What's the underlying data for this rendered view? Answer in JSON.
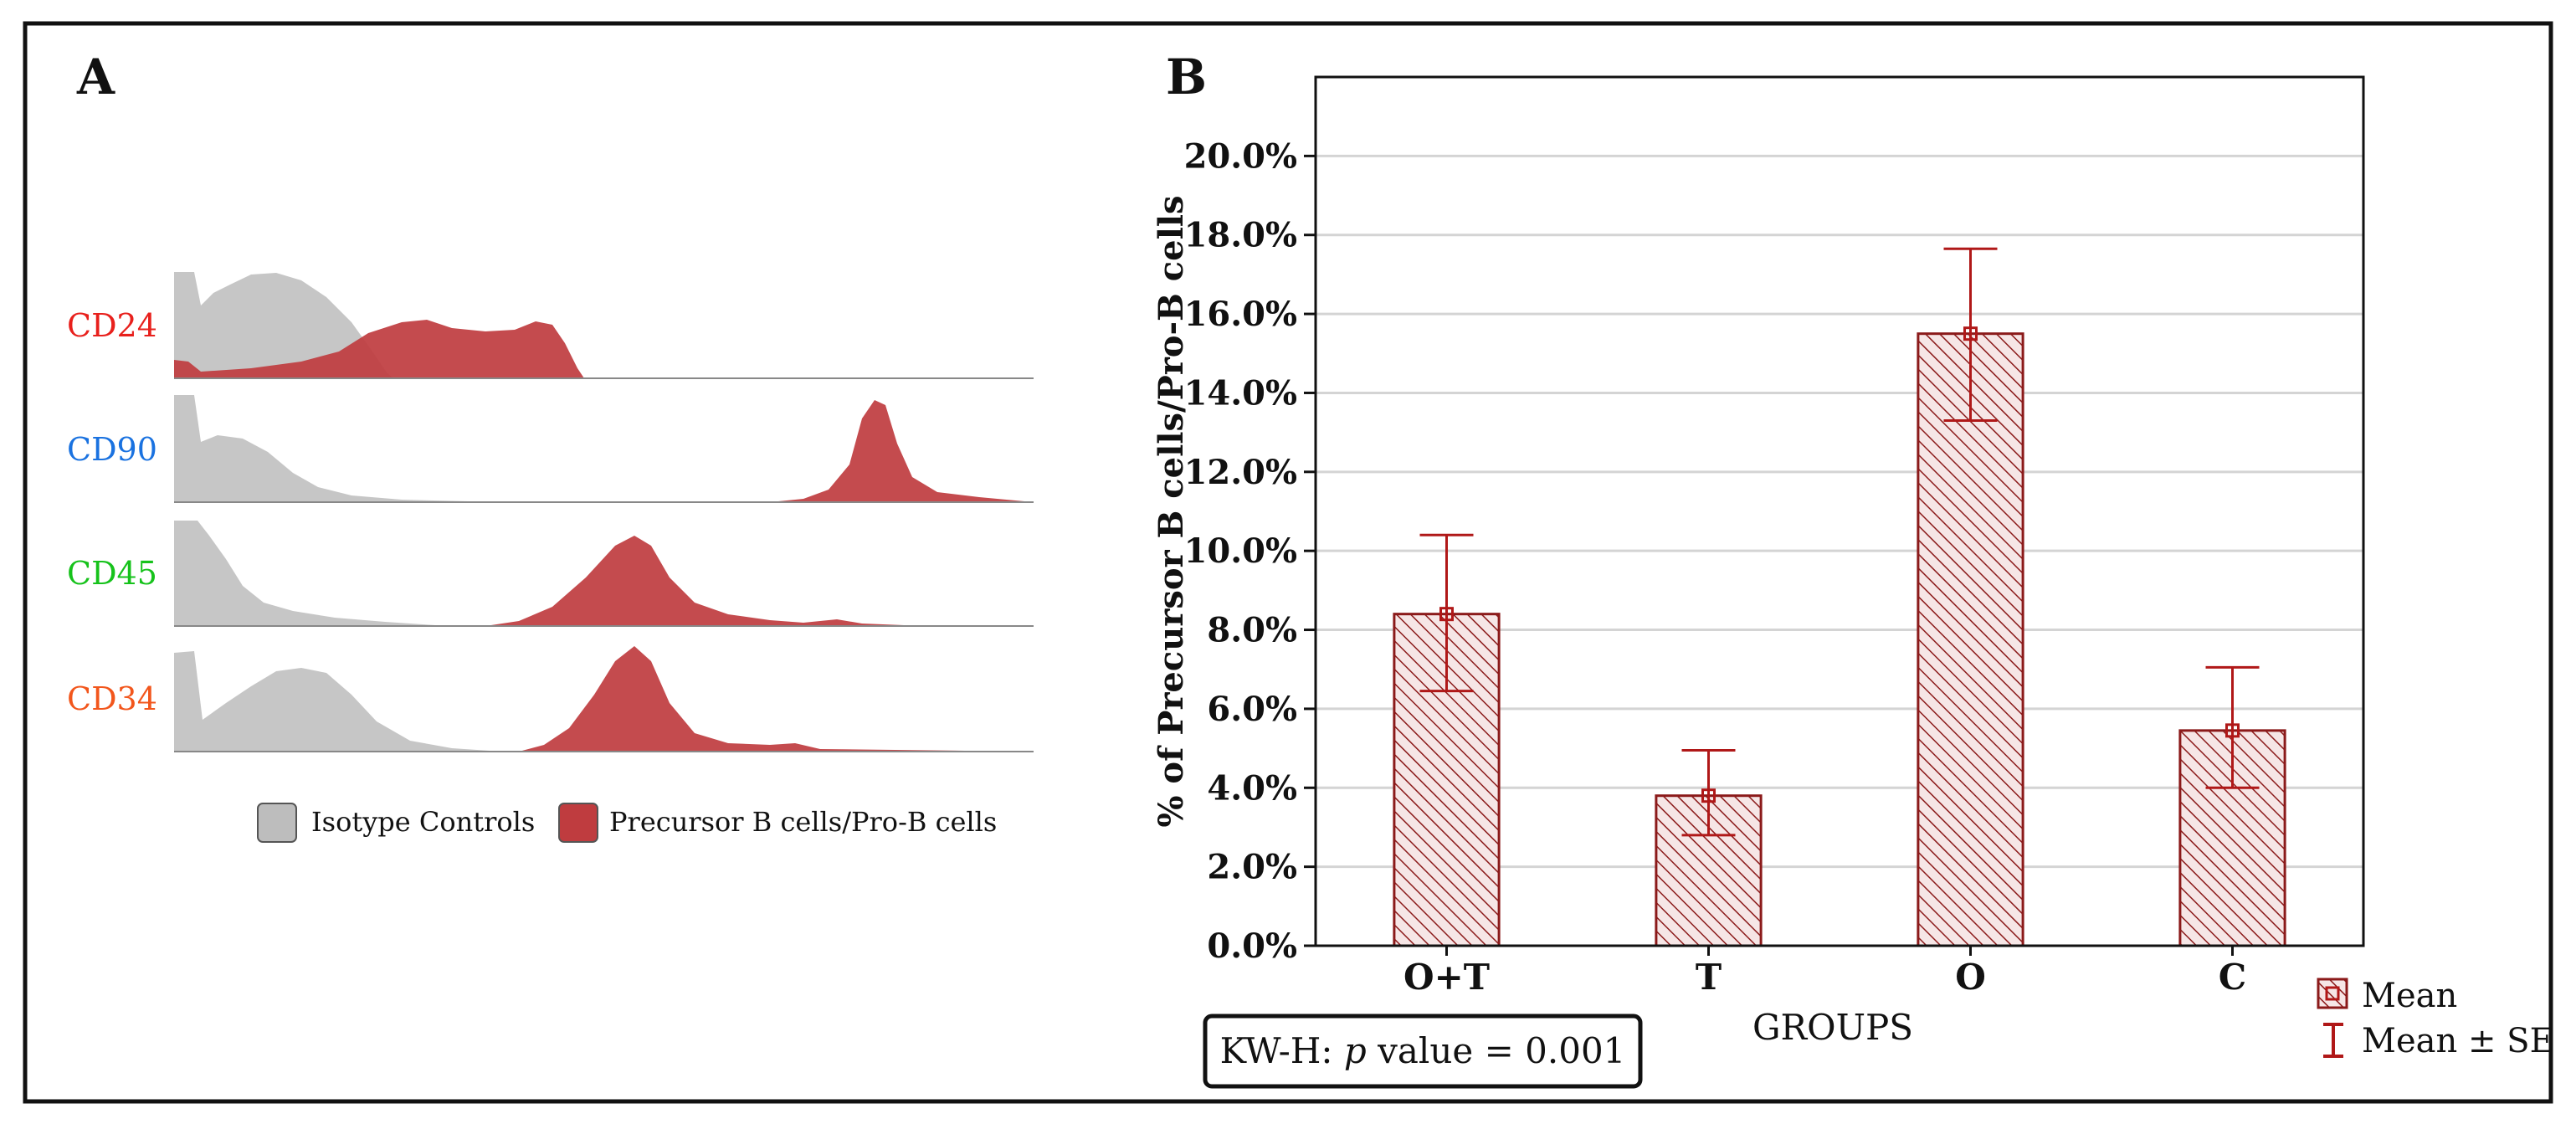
{
  "panel_a": {
    "letter": "A",
    "rows": [
      {
        "label": "CD24",
        "color": "#e8201c"
      },
      {
        "label": "CD90",
        "color": "#1a72e0"
      },
      {
        "label": "CD45",
        "color": "#16c21b"
      },
      {
        "label": "CD34",
        "color": "#f2561c"
      }
    ],
    "legend": {
      "isotype_label": "Isotype Controls",
      "isotype_color": "#bdbdbd",
      "precursor_label": "Precursor B cells/Pro-B cells",
      "precursor_color": "#bf3c3f"
    }
  },
  "panel_b": {
    "letter": "B",
    "annotation": {
      "prefix": "KW-H: ",
      "p": "p",
      "suffix": " value = 0.001"
    },
    "legend": {
      "mean_label": "Mean",
      "se_label": "Mean ± SE"
    }
  },
  "chart_data": {
    "type": "bar",
    "title": "",
    "xlabel": "GROUPS",
    "ylabel": "% of Precursor B cells/Pro-B cells",
    "categories": [
      "O+T",
      "T",
      "O",
      "C"
    ],
    "series": [
      {
        "name": "Mean",
        "values": [
          8.4,
          3.8,
          15.5,
          5.45
        ],
        "se_low": [
          6.45,
          2.8,
          13.3,
          4.0
        ],
        "se_high": [
          10.4,
          4.95,
          17.65,
          7.05
        ]
      }
    ],
    "ylim": [
      0,
      22
    ],
    "yticks": [
      0,
      2,
      4,
      6,
      8,
      10,
      12,
      14,
      16,
      18,
      20
    ],
    "ytick_labels": [
      "0.0%",
      "2.0%",
      "4.0%",
      "6.0%",
      "8.0%",
      "10.0%",
      "12.0%",
      "14.0%",
      "16.0%",
      "18.0%",
      "20.0%"
    ],
    "grid": true,
    "colors": {
      "bar": "#8b1a1a",
      "bar_fill": "#f4e3e3",
      "error": "#b01818"
    }
  }
}
